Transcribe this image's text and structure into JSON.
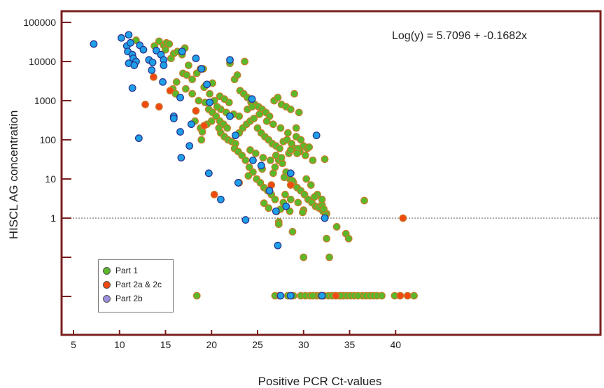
{
  "chart_data": {
    "type": "scatter",
    "xlabel": "Positive PCR Ct-values",
    "ylabel": "HISCL AG concentration",
    "annotation": "Log(y) = 5.7096 + -0.1682x",
    "xlim": [
      5,
      45
    ],
    "x_ticks": [
      "5",
      "10",
      "15",
      "20",
      "25",
      "30",
      "35",
      "40"
    ],
    "y_ticks": [
      "1",
      "10",
      "100",
      "1000",
      "10000",
      "100000"
    ],
    "y_scale": "log",
    "reference_line": {
      "y": 1,
      "style": "dotted"
    },
    "legend_position": "bottom-left",
    "grid": false,
    "frame_color": "#7a1f1f",
    "series": [
      {
        "name": "Part 1",
        "color": "#5ab82b",
        "stroke": "#c87a2a",
        "points": [
          [
            11.8,
            35000
          ],
          [
            13.8,
            25000
          ],
          [
            14.3,
            33000
          ],
          [
            14.8,
            26000
          ],
          [
            15.1,
            30000
          ],
          [
            15.4,
            28000
          ],
          [
            15.0,
            20000
          ],
          [
            15.6,
            12000
          ],
          [
            15.9,
            16000
          ],
          [
            16.3,
            18000
          ],
          [
            16.8,
            15000
          ],
          [
            17.1,
            22000
          ],
          [
            17.5,
            8000
          ],
          [
            16.9,
            5000
          ],
          [
            17.3,
            4500
          ],
          [
            16.2,
            3000
          ],
          [
            15.8,
            2000
          ],
          [
            16.1,
            1500
          ],
          [
            17.2,
            2000
          ],
          [
            17.9,
            1500
          ],
          [
            18.6,
            1000
          ],
          [
            19.1,
            6500
          ],
          [
            19.4,
            2500
          ],
          [
            19.8,
            1500
          ],
          [
            18.2,
            300
          ],
          [
            18.8,
            200
          ],
          [
            19.3,
            900
          ],
          [
            19.7,
            600
          ],
          [
            20.1,
            500
          ],
          [
            20.5,
            400
          ],
          [
            20.9,
            300
          ],
          [
            21.3,
            250
          ],
          [
            21.7,
            200
          ],
          [
            22.0,
            9000
          ],
          [
            22.5,
            3500
          ],
          [
            22.8,
            4500
          ],
          [
            23.6,
            10000
          ],
          [
            23.1,
            1800
          ],
          [
            23.5,
            1500
          ],
          [
            23.9,
            1200
          ],
          [
            24.3,
            900
          ],
          [
            24.7,
            800
          ],
          [
            25.1,
            700
          ],
          [
            25.5,
            600
          ],
          [
            25.9,
            500
          ],
          [
            26.3,
            400
          ],
          [
            26.8,
            1000
          ],
          [
            27.2,
            1200
          ],
          [
            27.6,
            800
          ],
          [
            28.1,
            700
          ],
          [
            28.6,
            600
          ],
          [
            29.0,
            1500
          ],
          [
            29.5,
            500
          ],
          [
            21.0,
            150
          ],
          [
            21.4,
            120
          ],
          [
            21.8,
            100
          ],
          [
            22.2,
            90
          ],
          [
            22.6,
            80
          ],
          [
            23.0,
            150
          ],
          [
            23.4,
            200
          ],
          [
            23.8,
            250
          ],
          [
            24.2,
            300
          ],
          [
            24.6,
            350
          ],
          [
            25.0,
            200
          ],
          [
            25.4,
            150
          ],
          [
            25.8,
            120
          ],
          [
            26.2,
            100
          ],
          [
            26.6,
            80
          ],
          [
            27.0,
            70
          ],
          [
            27.4,
            60
          ],
          [
            27.8,
            90
          ],
          [
            28.2,
            100
          ],
          [
            28.7,
            80
          ],
          [
            29.2,
            120
          ],
          [
            29.7,
            100
          ],
          [
            30.0,
            70
          ],
          [
            30.4,
            60
          ],
          [
            22.5,
            60
          ],
          [
            22.9,
            50
          ],
          [
            23.3,
            40
          ],
          [
            23.7,
            30
          ],
          [
            24.1,
            20
          ],
          [
            24.5,
            15
          ],
          [
            24.9,
            10
          ],
          [
            25.3,
            8
          ],
          [
            25.7,
            6
          ],
          [
            26.1,
            5
          ],
          [
            26.5,
            4
          ],
          [
            26.9,
            20
          ],
          [
            27.3,
            30
          ],
          [
            27.7,
            25
          ],
          [
            28.1,
            15
          ],
          [
            28.5,
            10
          ],
          [
            28.9,
            8
          ],
          [
            29.3,
            6
          ],
          [
            29.7,
            5
          ],
          [
            30.1,
            4
          ],
          [
            30.5,
            3
          ],
          [
            30.9,
            2.5
          ],
          [
            31.3,
            2
          ],
          [
            31.7,
            1.8
          ],
          [
            32.1,
            1.5
          ],
          [
            32.5,
            1.3
          ],
          [
            29.4,
            2.5
          ],
          [
            30.0,
            1.6
          ],
          [
            29.9,
            1.4
          ],
          [
            25.7,
            2.4
          ],
          [
            26.2,
            1.8
          ],
          [
            27.1,
            1.5
          ],
          [
            27.3,
            0.8
          ],
          [
            27.3,
            0.7
          ],
          [
            27.5,
            1.7
          ],
          [
            28.0,
            4
          ],
          [
            28.6,
            3
          ],
          [
            31.6,
            1.9
          ],
          [
            32.0,
            2.2
          ],
          [
            32.2,
            1.7
          ],
          [
            32.4,
            1.2
          ],
          [
            32.5,
            0.3
          ],
          [
            32.8,
            0.1
          ],
          [
            33.6,
            0.6
          ],
          [
            34.6,
            0.4
          ],
          [
            34.9,
            0.3
          ],
          [
            36.6,
            2.8
          ],
          [
            30.0,
            0.1
          ],
          [
            28.8,
            0.45
          ],
          [
            20.3,
            1000
          ],
          [
            21.0,
            600
          ],
          [
            20.6,
            700
          ],
          [
            20.0,
            300
          ],
          [
            19.5,
            250
          ],
          [
            19.0,
            160
          ],
          [
            18.9,
            100
          ],
          [
            20.8,
            200
          ],
          [
            21.6,
            500
          ],
          [
            22.4,
            450
          ],
          [
            23.0,
            400
          ],
          [
            23.9,
            600
          ],
          [
            24.4,
            700
          ],
          [
            25.2,
            450
          ],
          [
            26.0,
            300
          ],
          [
            26.7,
            250
          ],
          [
            27.5,
            200
          ],
          [
            28.3,
            150
          ],
          [
            29.2,
            200
          ],
          [
            24.2,
            55
          ],
          [
            24.8,
            45
          ],
          [
            25.6,
            35
          ],
          [
            26.4,
            30
          ],
          [
            27.0,
            40
          ],
          [
            27.6,
            35
          ],
          [
            28.4,
            45
          ],
          [
            29.0,
            60
          ],
          [
            29.6,
            50
          ],
          [
            30.2,
            40
          ],
          [
            31.0,
            30
          ],
          [
            32.3,
            32
          ],
          [
            23.0,
            8
          ],
          [
            24.0,
            12
          ],
          [
            25.5,
            18
          ],
          [
            26.7,
            14
          ],
          [
            27.9,
            11
          ],
          [
            28.8,
            9
          ],
          [
            30.3,
            10
          ],
          [
            30.8,
            7
          ],
          [
            31.5,
            4
          ],
          [
            26.9,
            3
          ],
          [
            27.8,
            2.5
          ],
          [
            28.5,
            1.5
          ],
          [
            31.2,
            3.5
          ],
          [
            32.0,
            3
          ],
          [
            29.4,
            60
          ],
          [
            30.6,
            65
          ],
          [
            29.3,
            45
          ],
          [
            28.6,
            55
          ],
          [
            17.9,
            3500
          ],
          [
            18.8,
            6500
          ],
          [
            19.2,
            2200
          ],
          [
            20.1,
            2800
          ],
          [
            18.4,
            5000
          ],
          [
            20.9,
            1300
          ],
          [
            21.9,
            900
          ],
          [
            21.4,
            1100
          ],
          [
            18.4,
            0.001
          ],
          [
            29.7,
            0.001
          ],
          [
            30.2,
            0.001
          ],
          [
            31.4,
            0.001
          ],
          [
            31.8,
            0.001
          ],
          [
            32.2,
            0.001
          ],
          [
            32.7,
            0.001
          ],
          [
            33.1,
            0.001
          ],
          [
            33.9,
            0.001
          ],
          [
            34.3,
            0.001
          ],
          [
            34.7,
            0.001
          ],
          [
            35.1,
            0.001
          ],
          [
            35.5,
            0.001
          ],
          [
            36.4,
            0.001
          ],
          [
            36.8,
            0.001
          ],
          [
            37.2,
            0.001
          ],
          [
            37.6,
            0.001
          ],
          [
            38.0,
            0.001
          ],
          [
            38.5,
            0.001
          ],
          [
            39.9,
            0.001
          ],
          [
            42.0,
            0.001
          ],
          [
            26.9,
            0.001
          ],
          [
            27.4,
            0.001
          ],
          [
            28.3,
            0.001
          ],
          [
            28.9,
            0.001
          ],
          [
            30.7,
            0.001
          ],
          [
            31.0,
            0.001
          ],
          [
            33.5,
            0.001
          ],
          [
            34.0,
            0.001
          ],
          [
            35.9,
            0.001
          ]
        ]
      },
      {
        "name": "Part 2a & 2c",
        "color": "#f04a10",
        "stroke": "#c87a2a",
        "points": [
          [
            12.8,
            800
          ],
          [
            13.7,
            4000
          ],
          [
            14.3,
            700
          ],
          [
            15.5,
            1800
          ],
          [
            18.3,
            550
          ],
          [
            19.2,
            230
          ],
          [
            20.3,
            4
          ],
          [
            26.5,
            7
          ],
          [
            28.6,
            7
          ],
          [
            40.8,
            1
          ],
          [
            33.5,
            0.001
          ],
          [
            40.5,
            0.001
          ],
          [
            41.3,
            0.001
          ]
        ]
      },
      {
        "name": "Part 2b",
        "color": "#1ea0e6",
        "stroke": "#2b2f8a",
        "legend_color": "#9b8fe0",
        "points": [
          [
            7.2,
            28000
          ],
          [
            10.2,
            40000
          ],
          [
            10.8,
            25000
          ],
          [
            11.0,
            48000
          ],
          [
            11.2,
            30000
          ],
          [
            10.9,
            18000
          ],
          [
            11.4,
            15000
          ],
          [
            11.5,
            12000
          ],
          [
            11.0,
            9000
          ],
          [
            11.8,
            10000
          ],
          [
            12.2,
            26000
          ],
          [
            12.6,
            20000
          ],
          [
            13.2,
            11000
          ],
          [
            13.6,
            9500
          ],
          [
            13.5,
            6000
          ],
          [
            11.6,
            8000
          ],
          [
            14.0,
            19000
          ],
          [
            14.5,
            15000
          ],
          [
            14.8,
            11000
          ],
          [
            14.8,
            8000
          ],
          [
            14.7,
            3000
          ],
          [
            11.4,
            2100
          ],
          [
            16.6,
            1200
          ],
          [
            15.9,
            400
          ],
          [
            15.9,
            350
          ],
          [
            16.6,
            160
          ],
          [
            17.8,
            250
          ],
          [
            17.6,
            70
          ],
          [
            16.7,
            35
          ],
          [
            16.8,
            18000
          ],
          [
            18.3,
            12000
          ],
          [
            18.9,
            6500
          ],
          [
            19.5,
            2600
          ],
          [
            19.8,
            900
          ],
          [
            19.7,
            14
          ],
          [
            22.0,
            11000
          ],
          [
            22.0,
            400
          ],
          [
            22.6,
            130
          ],
          [
            22.9,
            8
          ],
          [
            23.7,
            0.9
          ],
          [
            24.4,
            1100
          ],
          [
            24.5,
            30
          ],
          [
            25.4,
            22
          ],
          [
            26.3,
            5
          ],
          [
            27.0,
            1.5
          ],
          [
            27.2,
            0.2
          ],
          [
            28.1,
            2
          ],
          [
            28.6,
            14
          ],
          [
            31.4,
            130
          ],
          [
            32.3,
            1
          ],
          [
            21.0,
            3
          ],
          [
            12.1,
            110
          ],
          [
            27.5,
            0.001
          ],
          [
            28.6,
            0.001
          ],
          [
            32.0,
            0.001
          ]
        ]
      }
    ]
  }
}
